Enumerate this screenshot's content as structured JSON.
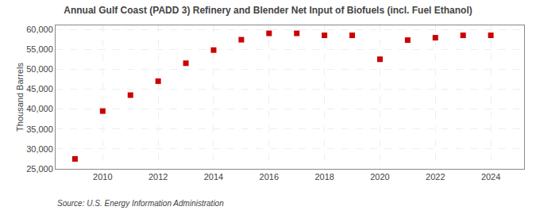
{
  "chart_data": {
    "type": "scatter",
    "title": "Annual Gulf Coast (PADD 3) Refinery and Blender Net Input of Biofuels (incl. Fuel Ethanol)",
    "ylabel": "Thousand Barrels",
    "annotations": [
      "Source: U.S. Energy Information Administration"
    ],
    "x": [
      2009,
      2010,
      2011,
      2012,
      2013,
      2014,
      2015,
      2016,
      2017,
      2018,
      2019,
      2020,
      2021,
      2022,
      2023,
      2024
    ],
    "values": [
      27500,
      39500,
      43500,
      47000,
      51500,
      54800,
      57400,
      59000,
      59000,
      58500,
      58500,
      52500,
      57300,
      57900,
      58500,
      58500
    ],
    "color": "#CC0000",
    "marker": "square",
    "grid": true,
    "xlim": [
      2008.3,
      2025.2
    ],
    "xticks": [
      2010,
      2012,
      2014,
      2016,
      2018,
      2020,
      2022,
      2024
    ],
    "ylim": [
      25000,
      61000
    ],
    "yticks": [
      {
        "value": 25000,
        "label": "25,000"
      },
      {
        "value": 30000,
        "label": "30,000"
      },
      {
        "value": 35000,
        "label": "35,000"
      },
      {
        "value": 40000,
        "label": "40,000"
      },
      {
        "value": 45000,
        "label": "45,000"
      },
      {
        "value": 50000,
        "label": "50,000"
      },
      {
        "value": 55000,
        "label": "55,000"
      },
      {
        "value": 60000,
        "label": "60,000"
      }
    ]
  }
}
